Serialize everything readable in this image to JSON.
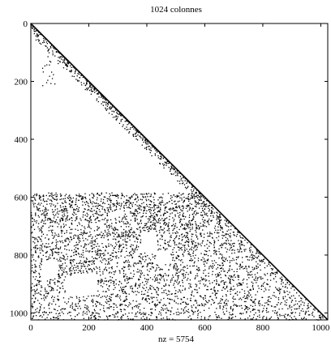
{
  "chart_data": {
    "type": "spy",
    "title": "1024 colonnes",
    "xlabel": "nz = 5754",
    "ylabel": "",
    "xlim": [
      0,
      1024
    ],
    "ylim": [
      0,
      1024
    ],
    "y_axis_inverted": true,
    "x_ticks": [
      0,
      200,
      400,
      600,
      800,
      1000
    ],
    "y_ticks": [
      0,
      200,
      400,
      600,
      800,
      1000
    ],
    "grid": false,
    "marker_color": "#000000",
    "nonzero_count": 5754,
    "structure": {
      "diagonal": {
        "from": 0,
        "to": 1024
      },
      "near_diagonal_band": {
        "rows": [
          0,
          590
        ],
        "max_offset_cols": 40
      },
      "dense_lower_block": {
        "rows": [
          585,
          1024
        ],
        "cols": [
          0,
          "diagonal"
        ]
      },
      "sparse_left_scatter": {
        "rows": [
          100,
          220
        ],
        "cols": [
          40,
          100
        ]
      },
      "empty_regions": [
        {
          "rows": [
            820,
            880
          ],
          "cols": [
            40,
            90
          ]
        },
        {
          "rows": [
            870,
            940
          ],
          "cols": [
            120,
            230
          ]
        },
        {
          "rows": [
            720,
            790
          ],
          "cols": [
            380,
            430
          ]
        },
        {
          "rows": [
            785,
            830
          ],
          "cols": [
            430,
            480
          ]
        }
      ]
    }
  }
}
